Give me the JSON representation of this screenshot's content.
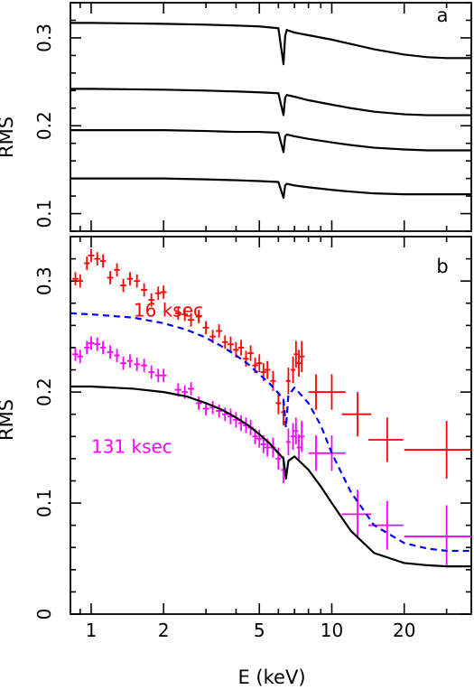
{
  "chart_data": [
    {
      "panel": "a",
      "type": "line",
      "panel_label": "a",
      "ylabel": "RMS",
      "xscale": "log",
      "xlim": [
        0.82,
        38
      ],
      "ylim": [
        0.08,
        0.34
      ],
      "yticks": [
        0.1,
        0.2,
        0.3
      ],
      "ytick_labels": [
        "0.1",
        "0.2",
        "0.3"
      ],
      "series": [
        {
          "color": "#000000",
          "dash": "solid",
          "x": [
            0.82,
            1,
            2,
            3,
            4,
            5,
            6,
            6.3,
            6.4,
            6.5,
            7,
            8,
            10,
            12,
            15,
            20,
            25,
            30,
            38
          ],
          "y": [
            0.317,
            0.317,
            0.316,
            0.315,
            0.314,
            0.313,
            0.311,
            0.27,
            0.302,
            0.309,
            0.306,
            0.303,
            0.298,
            0.293,
            0.287,
            0.281,
            0.278,
            0.277,
            0.277
          ]
        },
        {
          "color": "#000000",
          "dash": "solid",
          "x": [
            0.82,
            1,
            2,
            3,
            4,
            5,
            6,
            6.3,
            6.4,
            6.5,
            7,
            8,
            10,
            12,
            15,
            20,
            25,
            30,
            38
          ],
          "y": [
            0.242,
            0.242,
            0.241,
            0.24,
            0.239,
            0.238,
            0.237,
            0.212,
            0.232,
            0.235,
            0.233,
            0.229,
            0.224,
            0.22,
            0.216,
            0.213,
            0.212,
            0.212,
            0.212
          ]
        },
        {
          "color": "#000000",
          "dash": "solid",
          "x": [
            0.82,
            1,
            2,
            3,
            4,
            5,
            6,
            6.3,
            6.4,
            6.5,
            7,
            8,
            10,
            12,
            15,
            20,
            25,
            30,
            38
          ],
          "y": [
            0.195,
            0.195,
            0.195,
            0.194,
            0.193,
            0.193,
            0.192,
            0.17,
            0.188,
            0.19,
            0.188,
            0.185,
            0.181,
            0.178,
            0.175,
            0.173,
            0.172,
            0.172,
            0.172
          ]
        },
        {
          "color": "#000000",
          "dash": "solid",
          "x": [
            0.82,
            1,
            2,
            3,
            4,
            5,
            6,
            6.3,
            6.4,
            6.5,
            7,
            8,
            10,
            12,
            15,
            20,
            25,
            30,
            38
          ],
          "y": [
            0.14,
            0.14,
            0.14,
            0.139,
            0.138,
            0.137,
            0.136,
            0.118,
            0.132,
            0.134,
            0.132,
            0.13,
            0.127,
            0.125,
            0.123,
            0.122,
            0.122,
            0.122,
            0.122
          ]
        }
      ]
    },
    {
      "panel": "b",
      "type": "scatter",
      "panel_label": "b",
      "xlabel": "E  (keV)",
      "ylabel": "RMS",
      "xscale": "log",
      "xlim": [
        0.82,
        38
      ],
      "ylim": [
        0,
        0.34
      ],
      "yticks": [
        0,
        0.1,
        0.2,
        0.3
      ],
      "ytick_labels": [
        "0",
        "0.1",
        "0.2",
        "0.3"
      ],
      "xticks": [
        1,
        2,
        5,
        10,
        20
      ],
      "xtick_labels": [
        "1",
        "2",
        "5",
        "10",
        "20"
      ],
      "annotations": [
        {
          "text": "16  ksec",
          "color": "#ff0000",
          "x": 1.5,
          "y": 0.268
        },
        {
          "text": "131  ksec",
          "color": "#ff00ff",
          "x": 1.0,
          "y": 0.145
        }
      ],
      "series": [
        {
          "name": "16 ksec",
          "color": "#ff0000",
          "kind": "errorbar",
          "x": [
            0.86,
            0.9,
            0.96,
            1.0,
            1.06,
            1.12,
            1.2,
            1.28,
            1.36,
            1.45,
            1.55,
            1.66,
            1.78,
            1.9,
            2.0,
            2.3,
            2.45,
            2.6,
            2.8,
            3.0,
            3.2,
            3.4,
            3.6,
            3.8,
            4.0,
            4.2,
            4.4,
            4.6,
            4.8,
            5.0,
            5.2,
            5.4,
            5.7,
            6.0,
            6.3,
            6.6,
            6.9,
            7.1,
            7.3,
            7.5,
            8.6,
            10.0,
            12.8,
            17.0,
            30.0
          ],
          "y": [
            0.302,
            0.3,
            0.316,
            0.323,
            0.32,
            0.318,
            0.303,
            0.31,
            0.296,
            0.302,
            0.3,
            0.292,
            0.283,
            0.289,
            0.29,
            0.271,
            0.27,
            0.265,
            0.268,
            0.258,
            0.25,
            0.255,
            0.245,
            0.243,
            0.238,
            0.24,
            0.23,
            0.235,
            0.224,
            0.226,
            0.218,
            0.22,
            0.21,
            0.19,
            0.182,
            0.21,
            0.22,
            0.234,
            0.226,
            0.232,
            0.2,
            0.2,
            0.18,
            0.157,
            0.148
          ],
          "xerr": [
            0.025,
            0.025,
            0.025,
            0.03,
            0.03,
            0.03,
            0.035,
            0.035,
            0.04,
            0.04,
            0.045,
            0.05,
            0.05,
            0.055,
            0.06,
            0.07,
            0.07,
            0.08,
            0.08,
            0.09,
            0.09,
            0.1,
            0.1,
            0.11,
            0.11,
            0.12,
            0.12,
            0.13,
            0.13,
            0.14,
            0.14,
            0.15,
            0.15,
            0.15,
            0.15,
            0.15,
            0.15,
            0.15,
            0.15,
            0.2,
            0.6,
            1.4,
            1.8,
            2.8,
            10.0
          ],
          "yerr": [
            0.006,
            0.006,
            0.006,
            0.006,
            0.006,
            0.006,
            0.006,
            0.006,
            0.006,
            0.006,
            0.006,
            0.006,
            0.006,
            0.006,
            0.006,
            0.006,
            0.006,
            0.006,
            0.006,
            0.006,
            0.006,
            0.006,
            0.006,
            0.007,
            0.007,
            0.007,
            0.007,
            0.007,
            0.007,
            0.008,
            0.008,
            0.008,
            0.009,
            0.01,
            0.012,
            0.012,
            0.012,
            0.012,
            0.012,
            0.014,
            0.016,
            0.016,
            0.02,
            0.02,
            0.026
          ]
        },
        {
          "name": "131 ksec",
          "color": "#ff00ff",
          "kind": "errorbar",
          "x": [
            0.86,
            0.9,
            0.96,
            1.0,
            1.06,
            1.12,
            1.2,
            1.28,
            1.36,
            1.45,
            1.55,
            1.66,
            1.78,
            1.9,
            2.0,
            2.3,
            2.45,
            2.6,
            2.8,
            3.0,
            3.2,
            3.4,
            3.6,
            3.8,
            4.0,
            4.2,
            4.4,
            4.6,
            4.8,
            5.0,
            5.2,
            5.4,
            5.7,
            6.0,
            6.3,
            6.6,
            6.9,
            7.1,
            7.3,
            7.5,
            8.6,
            10.0,
            12.8,
            17.0,
            30.0
          ],
          "y": [
            0.234,
            0.232,
            0.24,
            0.244,
            0.243,
            0.24,
            0.236,
            0.233,
            0.226,
            0.228,
            0.225,
            0.224,
            0.218,
            0.215,
            0.215,
            0.202,
            0.2,
            0.203,
            0.19,
            0.185,
            0.186,
            0.183,
            0.18,
            0.178,
            0.175,
            0.172,
            0.17,
            0.168,
            0.16,
            0.158,
            0.153,
            0.15,
            0.15,
            0.14,
            0.13,
            0.155,
            0.16,
            0.165,
            0.15,
            0.16,
            0.145,
            0.145,
            0.09,
            0.08,
            0.07
          ],
          "xerr": [
            0.025,
            0.025,
            0.025,
            0.03,
            0.03,
            0.03,
            0.035,
            0.035,
            0.04,
            0.04,
            0.045,
            0.05,
            0.05,
            0.055,
            0.06,
            0.07,
            0.07,
            0.08,
            0.08,
            0.09,
            0.09,
            0.1,
            0.1,
            0.11,
            0.11,
            0.12,
            0.12,
            0.13,
            0.13,
            0.14,
            0.14,
            0.15,
            0.15,
            0.15,
            0.15,
            0.15,
            0.15,
            0.15,
            0.15,
            0.2,
            0.6,
            1.4,
            1.8,
            2.8,
            10.0
          ],
          "yerr": [
            0.006,
            0.006,
            0.006,
            0.006,
            0.006,
            0.006,
            0.006,
            0.006,
            0.006,
            0.006,
            0.006,
            0.006,
            0.006,
            0.006,
            0.006,
            0.006,
            0.006,
            0.006,
            0.006,
            0.006,
            0.006,
            0.006,
            0.006,
            0.007,
            0.007,
            0.007,
            0.007,
            0.007,
            0.007,
            0.008,
            0.008,
            0.008,
            0.009,
            0.01,
            0.012,
            0.012,
            0.012,
            0.012,
            0.012,
            0.014,
            0.016,
            0.016,
            0.022,
            0.022,
            0.028
          ]
        },
        {
          "color": "#0000ff",
          "kind": "line",
          "dash": "dashed",
          "x": [
            0.82,
            1,
            1.5,
            2,
            2.5,
            3,
            3.5,
            4,
            4.5,
            5,
            5.5,
            6,
            6.3,
            6.45,
            6.6,
            7,
            8,
            9,
            10,
            12,
            15,
            20,
            25,
            30,
            38
          ],
          "y": [
            0.271,
            0.27,
            0.267,
            0.262,
            0.256,
            0.249,
            0.241,
            0.233,
            0.225,
            0.216,
            0.208,
            0.199,
            0.193,
            0.168,
            0.197,
            0.204,
            0.19,
            0.17,
            0.145,
            0.11,
            0.08,
            0.064,
            0.059,
            0.057,
            0.057
          ]
        },
        {
          "color": "#000000",
          "kind": "line",
          "dash": "solid",
          "x": [
            0.82,
            1,
            1.5,
            2,
            2.5,
            3,
            3.5,
            4,
            4.5,
            5,
            5.5,
            6,
            6.3,
            6.45,
            6.6,
            7,
            8,
            9,
            10,
            12,
            15,
            20,
            25,
            30,
            38
          ],
          "y": [
            0.205,
            0.205,
            0.203,
            0.2,
            0.196,
            0.19,
            0.184,
            0.177,
            0.17,
            0.162,
            0.154,
            0.145,
            0.14,
            0.122,
            0.138,
            0.142,
            0.13,
            0.115,
            0.1,
            0.075,
            0.055,
            0.046,
            0.044,
            0.043,
            0.043
          ]
        }
      ]
    }
  ]
}
